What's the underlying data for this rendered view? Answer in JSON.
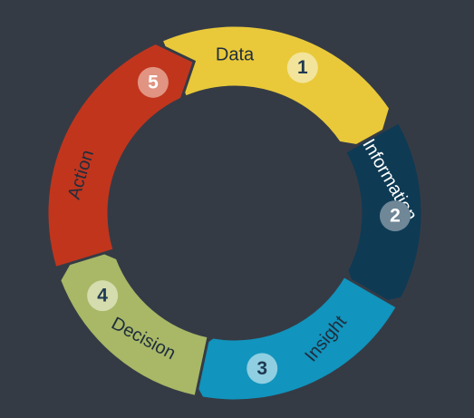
{
  "colors": {
    "background": "#353b45",
    "gap": "#353b45"
  },
  "stages": [
    {
      "label": "Data",
      "number": "1",
      "color": "#e9c93a",
      "text_color": "#1f2d3d",
      "badge_fill": "#f3e49b",
      "number_color": "#1f3a52"
    },
    {
      "label": "Information",
      "number": "2",
      "color": "#0e3a54",
      "text_color": "#ffffff",
      "badge_fill": "#6f8797",
      "number_color": "#ffffff"
    },
    {
      "label": "Insight",
      "number": "3",
      "color": "#1194bd",
      "text_color": "#1f2d3d",
      "badge_fill": "#8fcfe1",
      "number_color": "#1f3a52"
    },
    {
      "label": "Decision",
      "number": "4",
      "color": "#a8b866",
      "text_color": "#1f2d3d",
      "badge_fill": "#d5dcae",
      "number_color": "#1f3a52"
    },
    {
      "label": "Action",
      "number": "5",
      "color": "#c1351d",
      "text_color": "#1f2d3d",
      "badge_fill": "#e19482",
      "number_color": "#ffffff"
    }
  ]
}
